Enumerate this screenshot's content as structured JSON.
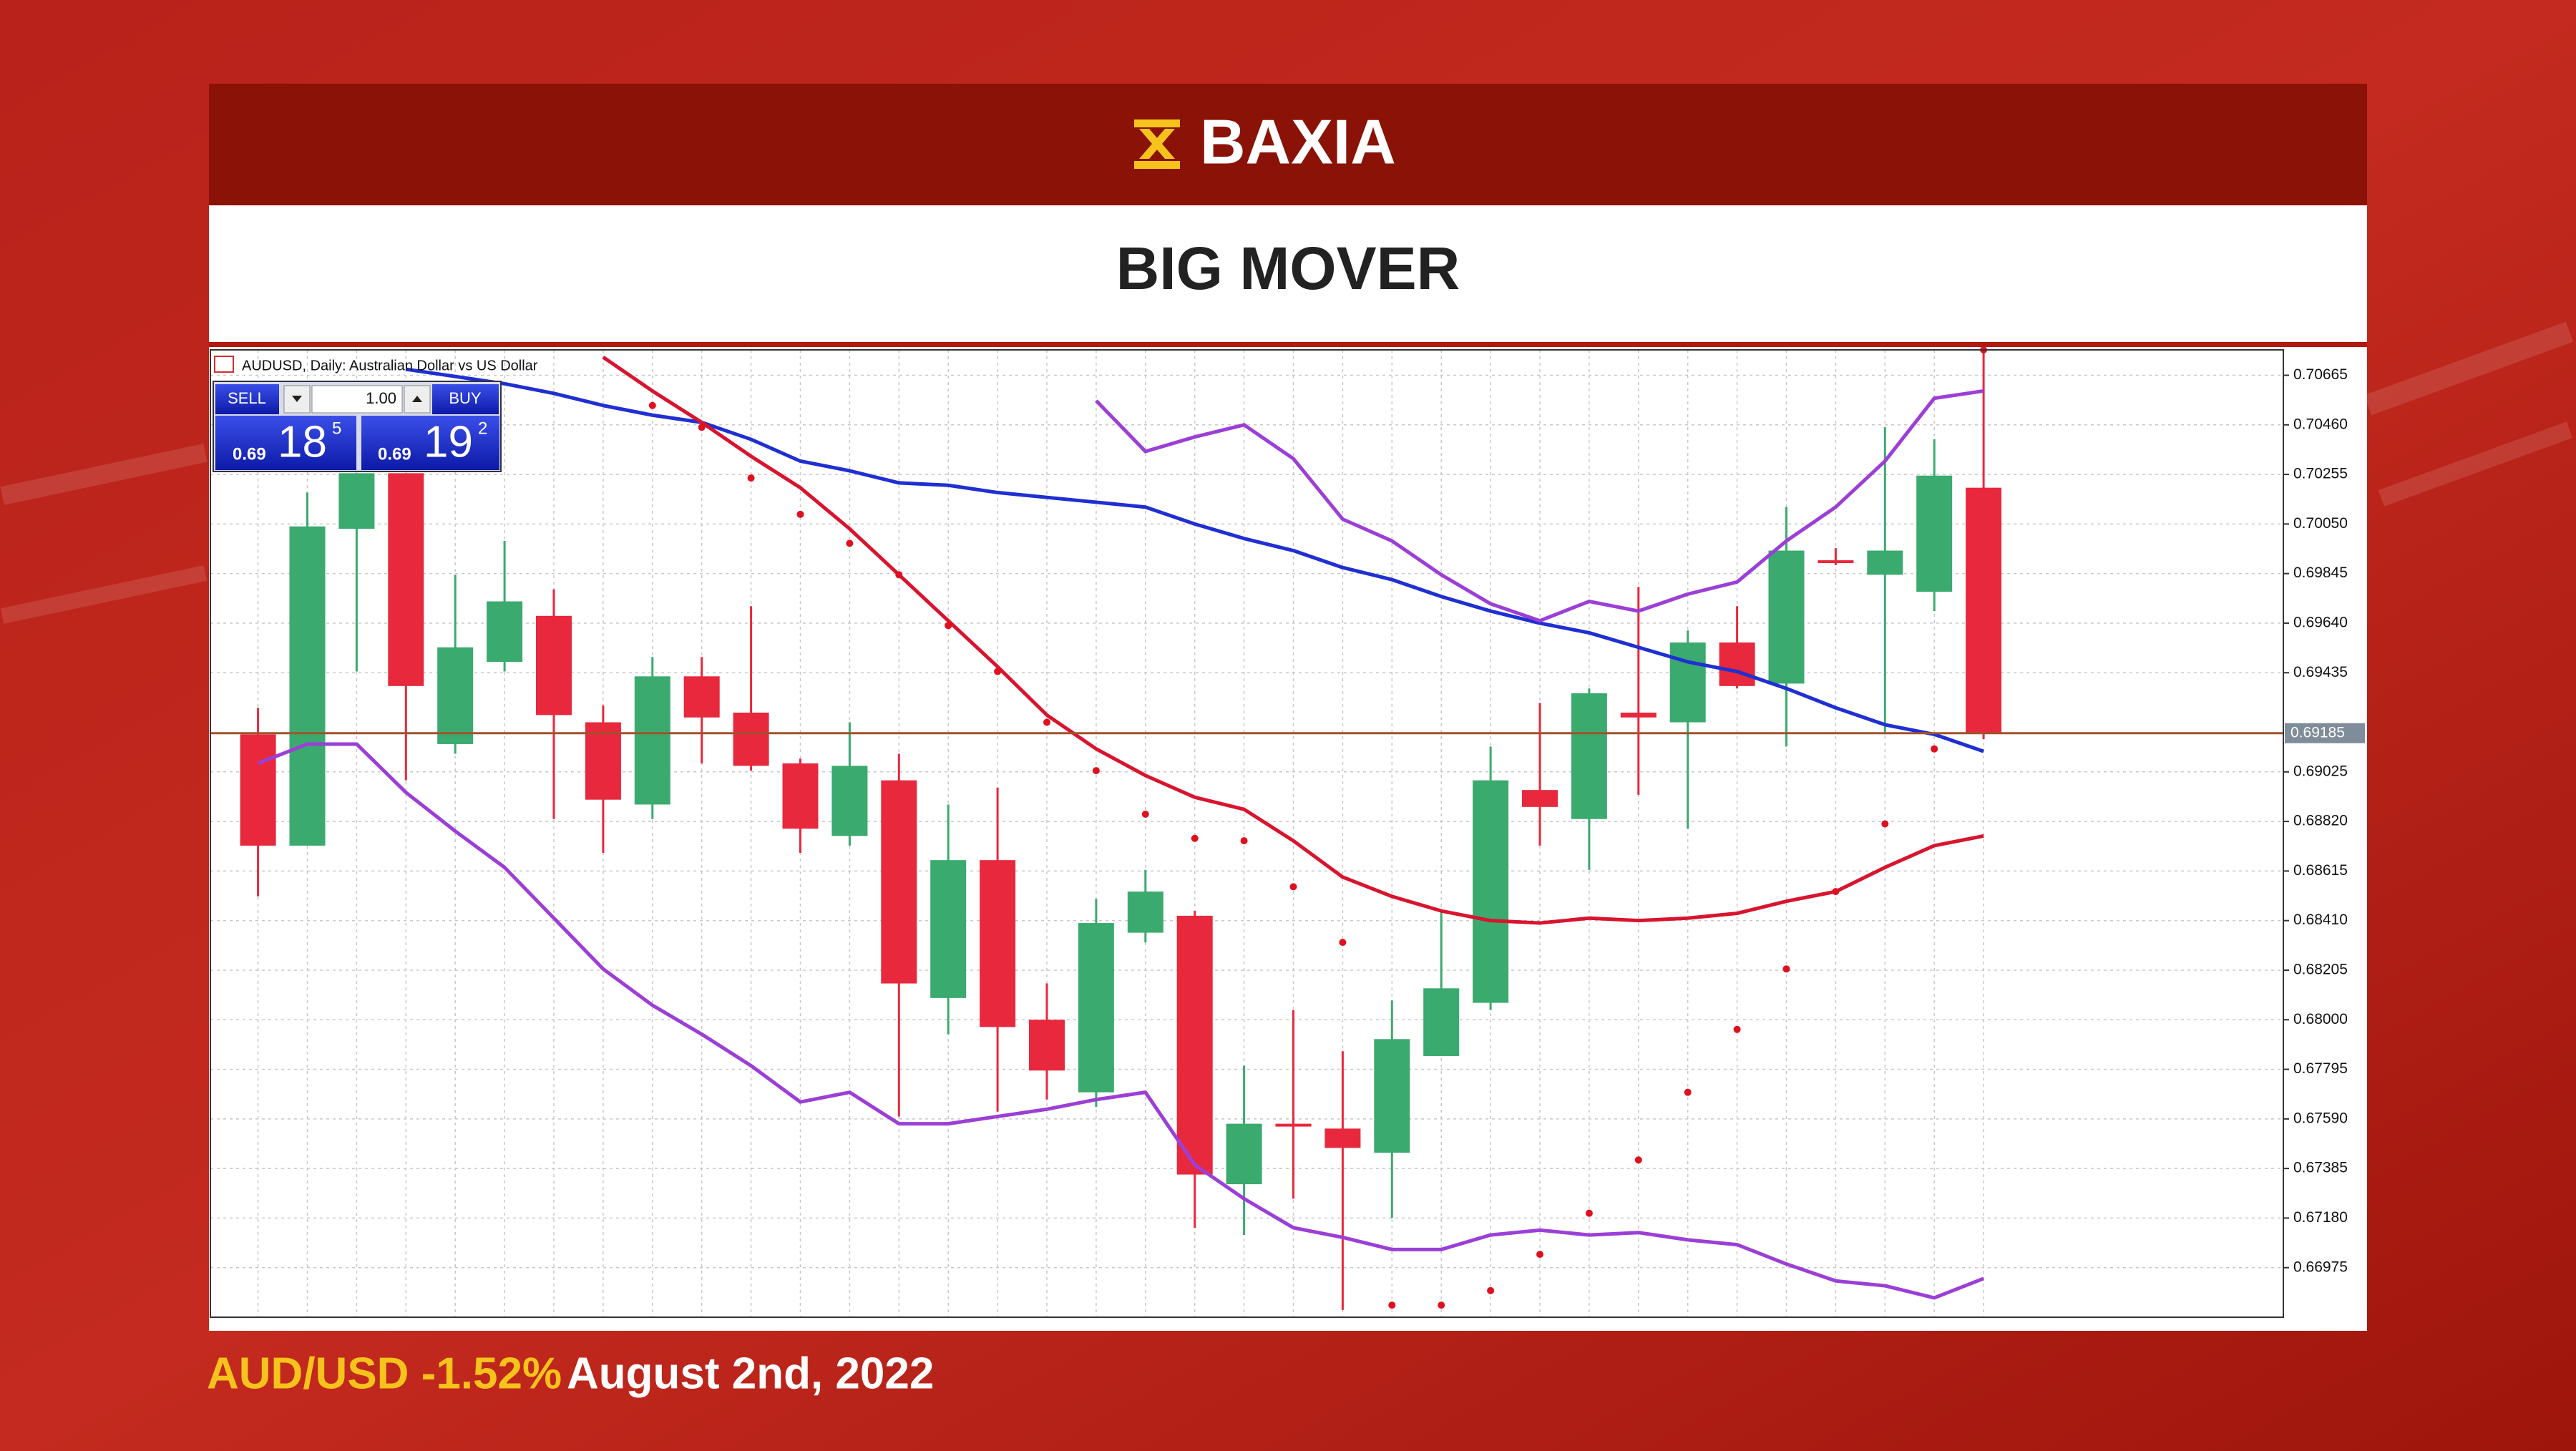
{
  "header": {
    "brand": "BAXIA",
    "title": "BIG MOVER"
  },
  "footer": {
    "instrument_change": "AUD/USD -1.52%",
    "date": "August 2nd, 2022"
  },
  "trade_panel": {
    "sell": "SELL",
    "buy": "BUY",
    "volume": "1.00",
    "sell_price": {
      "prefix": "0.69",
      "big": "18",
      "small": "5"
    },
    "buy_price": {
      "prefix": "0.69",
      "big": "19",
      "small": "2"
    }
  },
  "chart_data": {
    "type": "candlestick",
    "title": "AUDUSD, Daily:  Australian Dollar vs US Dollar",
    "open": [
      0.6918,
      0.6872,
      0.7003,
      0.7026,
      0.6914,
      0.6948,
      0.6967,
      0.6923,
      0.6889,
      0.6942,
      0.6927,
      0.6906,
      0.6876,
      0.6899,
      0.6809,
      0.6866,
      0.68,
      0.677,
      0.6836,
      0.6843,
      0.6732,
      0.6757,
      0.6755,
      0.6745,
      0.6785,
      0.6807,
      0.6895,
      0.6883,
      0.6927,
      0.6923,
      0.6956,
      0.6939,
      0.699,
      0.6984,
      0.6977,
      0.702
    ],
    "high": [
      0.6929,
      0.7018,
      0.7026,
      0.7026,
      0.6984,
      0.6998,
      0.6978,
      0.693,
      0.695,
      0.695,
      0.6971,
      0.6908,
      0.6923,
      0.691,
      0.6889,
      0.6896,
      0.6815,
      0.685,
      0.6862,
      0.6845,
      0.6781,
      0.6804,
      0.6787,
      0.6808,
      0.6845,
      0.6913,
      0.6931,
      0.6937,
      0.6979,
      0.6961,
      0.6971,
      0.7012,
      0.6995,
      0.7045,
      0.704,
      0.7077
    ],
    "low": [
      0.6851,
      0.6872,
      0.6944,
      0.6899,
      0.691,
      0.6944,
      0.6883,
      0.6869,
      0.6883,
      0.6906,
      0.6903,
      0.6869,
      0.6872,
      0.676,
      0.6794,
      0.6762,
      0.6767,
      0.6764,
      0.6832,
      0.6714,
      0.6711,
      0.6726,
      0.668,
      0.6718,
      0.6785,
      0.6804,
      0.6872,
      0.6862,
      0.6893,
      0.6879,
      0.6937,
      0.6913,
      0.6988,
      0.6918,
      0.6969,
      0.6916
    ],
    "close": [
      0.6872,
      0.7004,
      0.7026,
      0.6938,
      0.6954,
      0.6973,
      0.6926,
      0.6891,
      0.6942,
      0.6925,
      0.6905,
      0.6879,
      0.6905,
      0.6815,
      0.6866,
      0.6797,
      0.6779,
      0.684,
      0.6853,
      0.6736,
      0.6757,
      0.6756,
      0.6747,
      0.6792,
      0.6813,
      0.6899,
      0.6888,
      0.6935,
      0.6925,
      0.6956,
      0.6938,
      0.6994,
      0.699,
      0.6994,
      0.7025,
      0.69185
    ],
    "up_color": "#3aaa6e",
    "down_color": "#e8283c",
    "series": [
      {
        "style": "line",
        "color": "#1f2fd2",
        "values": [
          null,
          null,
          null,
          0.7069,
          0.7066,
          0.7063,
          0.7059,
          0.7054,
          0.705,
          0.7047,
          0.704,
          0.7031,
          0.7027,
          0.7022,
          0.7021,
          0.7018,
          0.7016,
          0.7014,
          0.7012,
          0.7005,
          0.6999,
          0.6994,
          0.6987,
          0.6982,
          0.6975,
          0.6969,
          0.6964,
          0.696,
          0.6954,
          0.6948,
          0.6944,
          0.6937,
          0.6929,
          0.6922,
          0.6918,
          0.6911
        ]
      },
      {
        "style": "line",
        "color": "#d8142e",
        "values": [
          null,
          null,
          null,
          null,
          null,
          null,
          null,
          0.7074,
          0.706,
          0.7047,
          0.7033,
          0.702,
          0.7003,
          0.6984,
          0.6965,
          0.6946,
          0.6926,
          0.6912,
          0.6901,
          0.6892,
          0.6887,
          0.6874,
          0.6859,
          0.6851,
          0.6845,
          0.6841,
          0.684,
          0.6842,
          0.6841,
          0.6842,
          0.6844,
          0.6849,
          0.6853,
          0.6863,
          0.6872,
          0.6876
        ]
      },
      {
        "style": "line",
        "color": "#9b3fd6",
        "values": [
          null,
          null,
          null,
          null,
          null,
          null,
          null,
          null,
          null,
          null,
          null,
          null,
          null,
          null,
          null,
          null,
          null,
          0.7056,
          0.7035,
          0.7041,
          0.7046,
          0.7032,
          0.7007,
          0.6998,
          0.6984,
          0.6972,
          0.6965,
          0.6973,
          0.6969,
          0.6976,
          0.6981,
          0.6998,
          0.7012,
          0.7031,
          0.7057,
          0.706
        ]
      },
      {
        "style": "line",
        "color": "#9b3fd6",
        "values": [
          0.6906,
          0.6914,
          0.6914,
          0.6894,
          0.6878,
          0.6863,
          0.6842,
          0.6821,
          0.6806,
          0.6794,
          0.6781,
          0.6766,
          0.677,
          0.6757,
          0.6757,
          0.676,
          0.6763,
          0.6767,
          0.677,
          0.674,
          0.6726,
          0.6714,
          0.671,
          0.6705,
          0.6705,
          0.6711,
          0.6713,
          0.6711,
          0.6712,
          0.6709,
          0.6707,
          0.6699,
          0.6692,
          0.669,
          0.6685,
          0.6693
        ]
      },
      {
        "style": "dots",
        "color": "#e0101e",
        "values": [
          null,
          null,
          null,
          null,
          null,
          null,
          null,
          null,
          0.7054,
          0.7045,
          0.7024,
          0.7009,
          0.6997,
          0.6984,
          0.6963,
          0.6944,
          0.6923,
          0.6903,
          0.6885,
          0.6875,
          0.6874,
          0.6855,
          0.6832,
          0.6682,
          0.6682,
          0.6688,
          0.6703,
          0.672,
          0.6742,
          0.677,
          0.6796,
          0.6821,
          0.6853,
          0.6881,
          0.6912,
          0.7077
        ]
      }
    ],
    "current_price": 0.69185,
    "current_price_color": "#a0522d",
    "ylim": [
      0.6677,
      0.7077
    ],
    "yticks": [
      {
        "value": 0.70665,
        "label": "0.70665"
      },
      {
        "value": 0.7046,
        "label": "0.70460"
      },
      {
        "value": 0.70255,
        "label": "0.70255"
      },
      {
        "value": 0.7005,
        "label": "0.70050"
      },
      {
        "value": 0.69845,
        "label": "0.69845"
      },
      {
        "value": 0.6964,
        "label": "0.69640"
      },
      {
        "value": 0.69435,
        "label": "0.69435"
      },
      {
        "value": 0.69025,
        "label": "0.69025"
      },
      {
        "value": 0.6882,
        "label": "0.68820"
      },
      {
        "value": 0.68615,
        "label": "0.68615"
      },
      {
        "value": 0.6841,
        "label": "0.68410"
      },
      {
        "value": 0.68205,
        "label": "0.68205"
      },
      {
        "value": 0.68,
        "label": "0.68000"
      },
      {
        "value": 0.67795,
        "label": "0.67795"
      },
      {
        "value": 0.6759,
        "label": "0.67590"
      },
      {
        "value": 0.67385,
        "label": "0.67385"
      },
      {
        "value": 0.6718,
        "label": "0.67180"
      },
      {
        "value": 0.66975,
        "label": "0.66975"
      }
    ],
    "grid": true
  }
}
